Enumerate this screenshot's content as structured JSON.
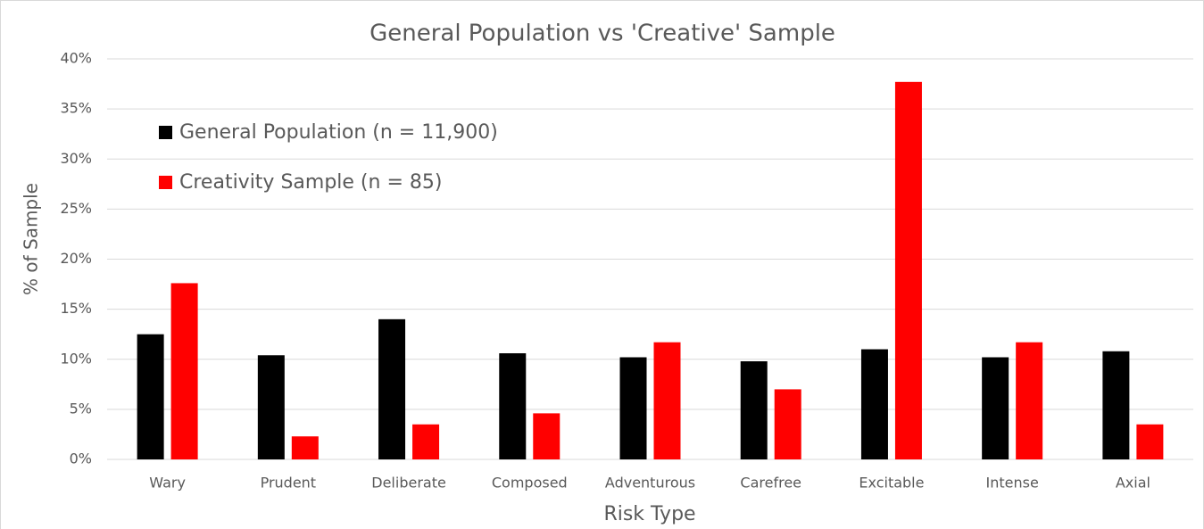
{
  "chart_data": {
    "type": "bar",
    "title": "General Population vs 'Creative' Sample",
    "x_label": "Risk Type",
    "y_label": "% of Sample",
    "categories": [
      "Wary",
      "Prudent",
      "Deliberate",
      "Composed",
      "Adventurous",
      "Carefree",
      "Excitable",
      "Intense",
      "Axial"
    ],
    "series": [
      {
        "name": "General Population (n = 11,900)",
        "color": "#000000",
        "values": [
          12.5,
          10.4,
          14.0,
          10.6,
          10.2,
          9.8,
          11.0,
          10.2,
          10.8
        ]
      },
      {
        "name": "Creativity Sample (n = 85)",
        "color": "#ff0000",
        "values": [
          17.6,
          2.3,
          3.5,
          4.6,
          11.7,
          7.0,
          37.7,
          11.7,
          3.5
        ]
      }
    ],
    "ylim": [
      0,
      40
    ],
    "yticks": [
      {
        "value": 0,
        "label": "0%"
      },
      {
        "value": 5,
        "label": "5%"
      },
      {
        "value": 10,
        "label": "10%"
      },
      {
        "value": 15,
        "label": "15%"
      },
      {
        "value": 20,
        "label": "20%"
      },
      {
        "value": 25,
        "label": "25%"
      },
      {
        "value": 30,
        "label": "30%"
      },
      {
        "value": 35,
        "label": "35%"
      },
      {
        "value": 40,
        "label": "40%"
      }
    ],
    "grid": true,
    "legend": "upper left"
  }
}
